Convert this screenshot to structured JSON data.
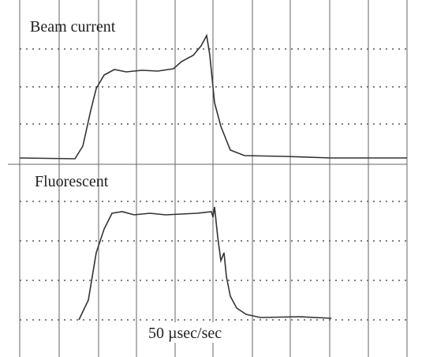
{
  "traces": {
    "top_label": "Beam current",
    "bottom_label": "Fluorescent"
  },
  "footer": {
    "timebase": "50 µsec/sec"
  }
}
